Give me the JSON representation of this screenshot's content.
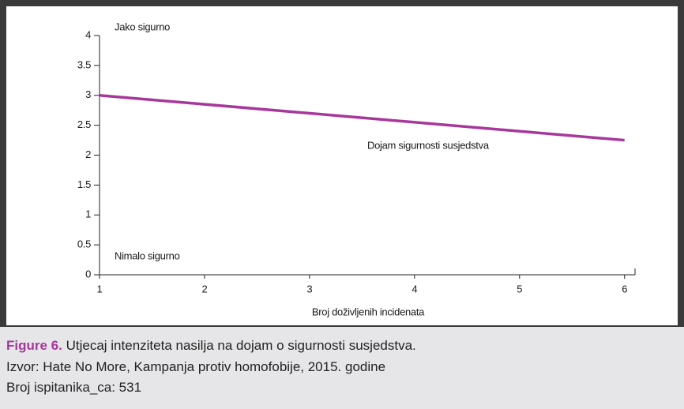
{
  "chart_data": {
    "type": "line",
    "x_label": "Broj doživljenih incidenata",
    "x": [
      1,
      6
    ],
    "series": [
      {
        "name": "Dojam sigurnosti susjedstva",
        "color": "#a8379b",
        "values": [
          3,
          2.25
        ]
      }
    ],
    "xlim": [
      1,
      6.1
    ],
    "xticks": [
      1,
      2,
      3,
      4,
      5,
      6
    ],
    "ylim": [
      0,
      4
    ],
    "yticks": [
      0,
      0.5,
      1,
      1.5,
      2,
      2.5,
      3,
      3.5,
      4
    ],
    "annotations": [
      "Jako sigurno",
      "Nimalo sigurno"
    ]
  },
  "caption": {
    "label": "Figure 6.",
    "text": "Utjecaj intenziteta nasilja na dojam o sigurnosti susjedstva.",
    "source": "Izvor: Hate No More, Kampanja protiv homofobije, 2015. godine",
    "sample": "Broj ispitanika_ca: 531"
  }
}
